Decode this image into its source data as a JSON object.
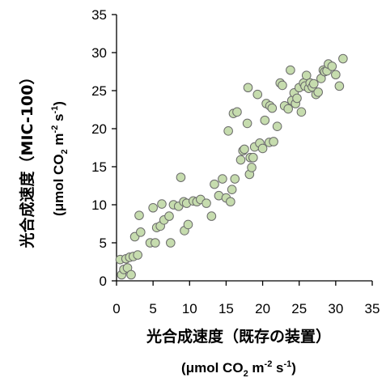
{
  "chart_data": {
    "type": "scatter",
    "xlabel": "光合成速度（既存の装置）",
    "xunit": {
      "pre": "(μmol CO",
      "sub": "2",
      "mid1": " m",
      "sup1": "-2",
      "mid2": " s",
      "sup2": "-1",
      "post": ")"
    },
    "ylabel": "光合成速度（MIC-100）",
    "yunit": {
      "pre": "(μmol CO",
      "sub": "2",
      "mid1": " m",
      "sup1": "-2",
      "mid2": " s",
      "sup2": "-1",
      "post": ")"
    },
    "xlim": [
      0,
      35
    ],
    "ylim": [
      0,
      35
    ],
    "xticks": [
      "0",
      "5",
      "10",
      "15",
      "20",
      "25",
      "30",
      "35"
    ],
    "yticks": [
      "0",
      "5",
      "10",
      "15",
      "20",
      "25",
      "30",
      "35"
    ],
    "grid": false,
    "marker_fill": "#c6dcae",
    "marker_stroke": "#6b6b6b",
    "x": [
      0.5,
      0.7,
      1.0,
      1.3,
      1.5,
      1.8,
      2.0,
      2.3,
      2.5,
      2.9,
      3.1,
      3.3,
      4.6,
      5.0,
      5.3,
      5.5,
      6.0,
      6.2,
      6.5,
      7.2,
      7.4,
      7.8,
      8.5,
      8.8,
      9.2,
      9.3,
      9.6,
      9.8,
      10.5,
      11.0,
      11.5,
      12.3,
      13.0,
      13.4,
      14.0,
      14.5,
      15.0,
      15.3,
      15.6,
      15.8,
      16.0,
      16.2,
      16.5,
      17.0,
      17.3,
      17.5,
      17.9,
      18.0,
      18.2,
      18.3,
      18.5,
      18.7,
      18.9,
      19.3,
      19.6,
      20.0,
      20.3,
      20.5,
      20.9,
      21.0,
      21.3,
      21.5,
      22.0,
      22.4,
      22.7,
      23.0,
      23.5,
      23.8,
      24.0,
      24.3,
      24.5,
      24.7,
      25.0,
      25.3,
      25.6,
      25.8,
      26.0,
      26.3,
      26.5,
      26.8,
      27.0,
      27.3,
      27.6,
      28.0,
      28.3,
      28.5,
      28.8,
      29.0,
      29.5,
      30.0,
      30.5,
      31.0
    ],
    "y": [
      2.8,
      0.8,
      1.5,
      2.9,
      1.7,
      3.1,
      0.8,
      3.2,
      5.8,
      3.4,
      8.6,
      6.4,
      5.0,
      9.6,
      5.0,
      7.0,
      7.2,
      10.1,
      8.0,
      8.5,
      5.0,
      10.0,
      9.8,
      13.6,
      10.4,
      6.6,
      10.2,
      7.4,
      10.5,
      10.4,
      10.7,
      10.2,
      8.5,
      12.7,
      11.2,
      13.4,
      10.9,
      19.7,
      10.4,
      12.0,
      22.0,
      13.4,
      22.2,
      15.9,
      17.1,
      17.3,
      20.7,
      25.4,
      14.0,
      16.2,
      14.9,
      16.2,
      17.6,
      24.5,
      18.1,
      17.4,
      21.1,
      23.3,
      18.2,
      23.0,
      22.7,
      18.3,
      20.3,
      26.0,
      25.7,
      23.0,
      22.6,
      27.7,
      23.7,
      24.7,
      23.3,
      24.0,
      25.4,
      22.2,
      26.0,
      25.6,
      27.0,
      25.3,
      26.0,
      25.5,
      25.9,
      24.5,
      24.8,
      26.6,
      27.7,
      27.5,
      27.6,
      28.5,
      28.2,
      27.1,
      25.6,
      29.2
    ]
  }
}
